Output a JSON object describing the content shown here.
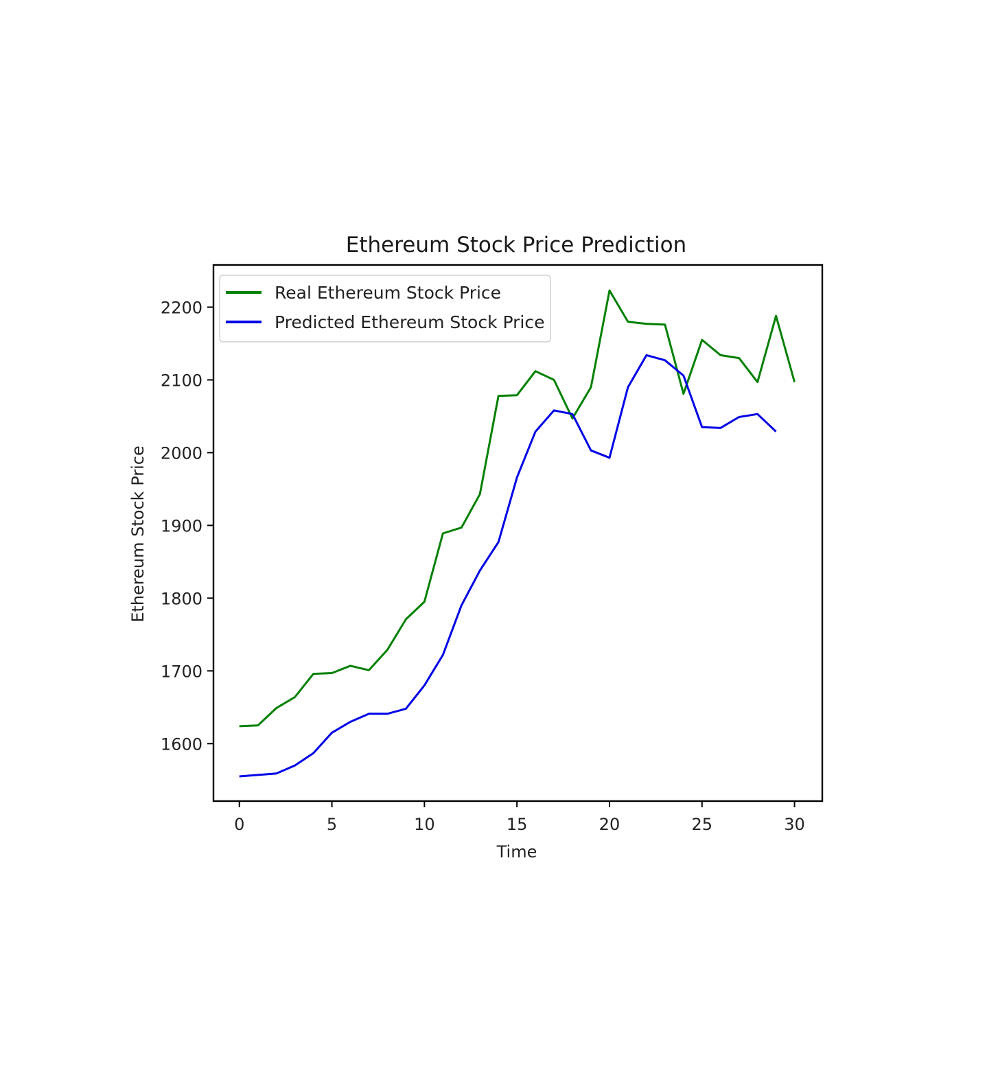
{
  "chart_data": {
    "type": "line",
    "title": "Ethereum Stock Price Prediction",
    "xlabel": "Time",
    "ylabel": "Ethereum Stock Price",
    "xlim": [
      -1.4,
      31.5
    ],
    "ylim": [
      1521,
      2258
    ],
    "xticks": [
      0,
      5,
      10,
      15,
      20,
      25,
      30
    ],
    "xtick_labels": [
      "0",
      "5",
      "10",
      "15",
      "20",
      "25",
      "30"
    ],
    "yticks": [
      1600,
      1700,
      1800,
      1900,
      2000,
      2100,
      2200
    ],
    "ytick_labels": [
      "1600",
      "1700",
      "1800",
      "1900",
      "2000",
      "2100",
      "2200"
    ],
    "grid": false,
    "legend_position": "top-left",
    "series": [
      {
        "name": "Real Ethereum Stock Price",
        "color": "#008000",
        "x": [
          0,
          1,
          2,
          3,
          4,
          5,
          6,
          7,
          8,
          9,
          10,
          11,
          12,
          13,
          14,
          15,
          16,
          17,
          18,
          19,
          20,
          21,
          22,
          23,
          24,
          25,
          26,
          27,
          28,
          29,
          30
        ],
        "y": [
          1624,
          1625,
          1649,
          1664,
          1696,
          1697,
          1707,
          1701,
          1729,
          1771,
          1795,
          1889,
          1897,
          1943,
          2078,
          2079,
          2112,
          2100,
          2047,
          2090,
          2223,
          2180,
          2177,
          2176,
          2081,
          2155,
          2134,
          2130,
          2097,
          2188,
          2097
        ]
      },
      {
        "name": "Predicted Ethereum Stock Price",
        "color": "#0000e6",
        "x": [
          0,
          1,
          2,
          3,
          4,
          5,
          6,
          7,
          8,
          9,
          10,
          11,
          12,
          13,
          14,
          15,
          16,
          17,
          18,
          19,
          20,
          21,
          22,
          23,
          24,
          25,
          26,
          27,
          28,
          29
        ],
        "y": [
          1555,
          1557,
          1559,
          1570,
          1587,
          1615,
          1630,
          1641,
          1641,
          1648,
          1680,
          1722,
          1790,
          1838,
          1877,
          1966,
          2029,
          2058,
          2053,
          2003,
          1993,
          2090,
          2134,
          2127,
          2106,
          2035,
          2034,
          2049,
          2053,
          2029
        ]
      }
    ]
  }
}
